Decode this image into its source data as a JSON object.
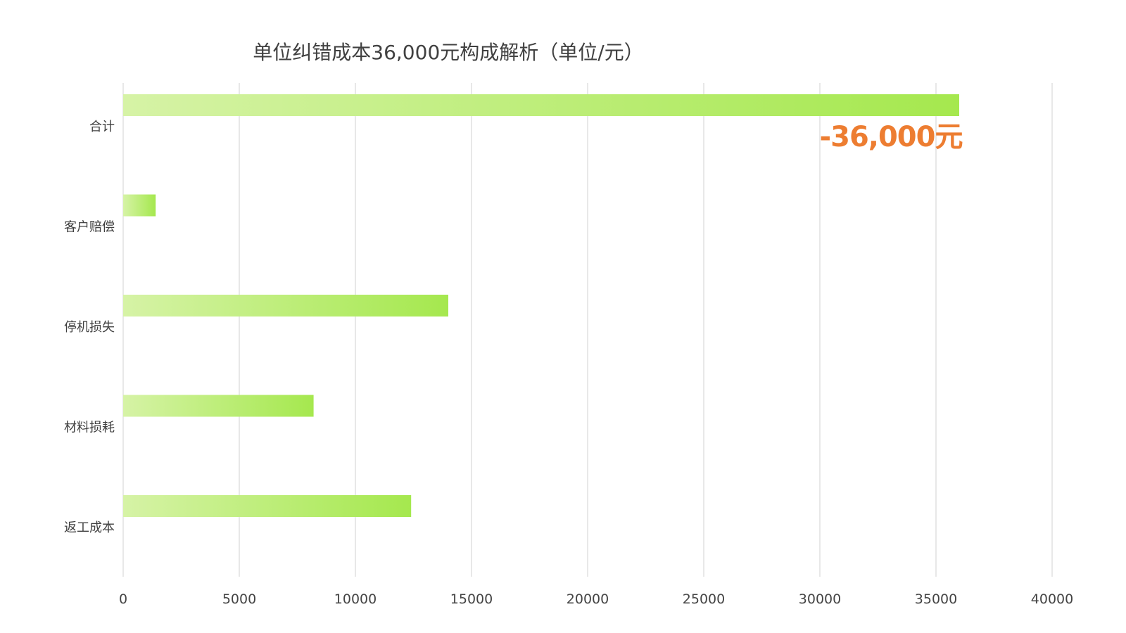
{
  "chart_data": {
    "type": "bar",
    "orientation": "horizontal",
    "title": "单位纠错成本36,000元构成解析（单位/元）",
    "categories": [
      "合计",
      "客户赔偿",
      "停机损失",
      "材料损耗",
      "返工成本"
    ],
    "values": [
      36000,
      1400,
      14000,
      8200,
      12400
    ],
    "xlim": [
      0,
      40000
    ],
    "x_ticks": [
      "0",
      "5000",
      "10000",
      "15000",
      "20000",
      "25000",
      "30000",
      "35000",
      "40000"
    ],
    "grid": "vertical",
    "legend": "none",
    "annotation": {
      "text": "-36,000元",
      "category": "合计",
      "color": "#ed7d31"
    },
    "colors": {
      "bar_start": "#d6f3a6",
      "bar_end": "#a5e84e",
      "grid": "#d9d9d9",
      "text": "#404040"
    }
  }
}
